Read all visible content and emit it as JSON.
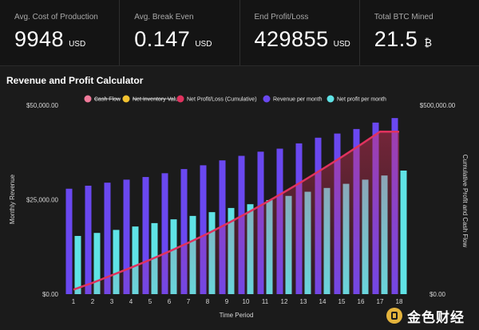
{
  "stats": [
    {
      "label": "Avg. Cost of Production",
      "value": "9948",
      "unit": "USD"
    },
    {
      "label": "Avg. Break Even",
      "value": "0.147",
      "unit": "USD"
    },
    {
      "label": "End Profit/Loss",
      "value": "429855",
      "unit": "USD"
    },
    {
      "label": "Total BTC Mined",
      "value": "21.5",
      "unit": "₿"
    }
  ],
  "watermark": {
    "text": "金色财经"
  },
  "chart_data": {
    "type": "bar",
    "title": "Revenue and Profit Calculator",
    "xlabel": "Time Period",
    "ylabel": "Monthly Revenue",
    "y2label": "Cumulative Profit and Cash Flow",
    "categories": [
      "1",
      "2",
      "3",
      "4",
      "5",
      "6",
      "7",
      "8",
      "9",
      "10",
      "11",
      "12",
      "13",
      "14",
      "15",
      "16",
      "17",
      "18"
    ],
    "ylim": [
      0,
      50000
    ],
    "y2lim": [
      0,
      500000
    ],
    "yticks": [
      "$0.00",
      "$25,000.00",
      "$50,000.00"
    ],
    "y2ticks": [
      "$0.00",
      "$500,000.00"
    ],
    "grid": false,
    "legend_position": "top",
    "legend": [
      {
        "name": "Cash Flow",
        "color": "#f07a9a",
        "hidden": true
      },
      {
        "name": "Net Inventory Value",
        "color": "#f2c230",
        "hidden": true
      },
      {
        "name": "Net Profit/Loss (Cumulative)",
        "color": "#e0325e",
        "hidden": false
      },
      {
        "name": "Revenue per month",
        "color": "#6a48f0",
        "hidden": false
      },
      {
        "name": "Net profit per month",
        "color": "#5fe3e6",
        "hidden": false
      }
    ],
    "series": [
      {
        "name": "Revenue per month",
        "type": "bar",
        "color": "#6a48f0",
        "axis": "left",
        "values": [
          27900,
          28700,
          29500,
          30300,
          31000,
          32000,
          33100,
          34100,
          35400,
          36600,
          37700,
          38500,
          39900,
          41400,
          42500,
          43700,
          45400,
          46600
        ]
      },
      {
        "name": "Net profit per month",
        "type": "bar",
        "color": "#5fe3e6",
        "axis": "left",
        "values": [
          15400,
          16200,
          17000,
          17900,
          18800,
          19800,
          20700,
          21700,
          22800,
          23800,
          24900,
          26000,
          27100,
          28100,
          29200,
          30300,
          31400,
          32700
        ]
      },
      {
        "name": "Net Profit/Loss (Cumulative)",
        "type": "line",
        "color": "#e0325e",
        "axis": "right",
        "values": [
          12000,
          30000,
          50000,
          70000,
          91000,
          113000,
          136000,
          160000,
          186000,
          213000,
          241000,
          270000,
          300000,
          331000,
          363000,
          396000,
          430000,
          429855
        ]
      }
    ]
  }
}
